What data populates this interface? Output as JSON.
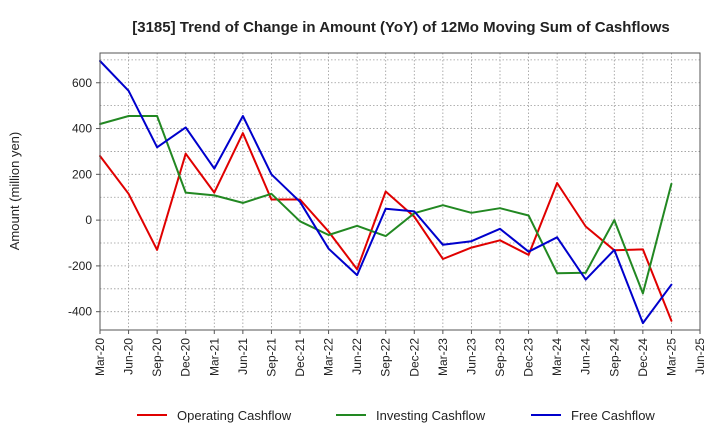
{
  "chart_data": {
    "type": "line",
    "title": "[3185]  Trend of Change in Amount (YoY) of 12Mo Moving Sum of Cashflows",
    "xlabel": "",
    "ylabel": "Amount (million yen)",
    "ylim": [
      -480,
      730
    ],
    "yticks": [
      -400,
      -200,
      0,
      200,
      400,
      600
    ],
    "grid": true,
    "legend_position": "bottom",
    "categories": [
      "Mar-20",
      "Jun-20",
      "Sep-20",
      "Dec-20",
      "Mar-21",
      "Jun-21",
      "Sep-21",
      "Dec-21",
      "Mar-22",
      "Jun-22",
      "Sep-22",
      "Dec-22",
      "Mar-23",
      "Jun-23",
      "Sep-23",
      "Dec-23",
      "Mar-24",
      "Jun-24",
      "Sep-24",
      "Dec-24",
      "Mar-25",
      "Jun-25"
    ],
    "series": [
      {
        "name": "Operating Cashflow",
        "color": "#e00000",
        "values": [
          280,
          115,
          -130,
          290,
          120,
          380,
          90,
          90,
          -50,
          -215,
          125,
          15,
          -170,
          -120,
          -88,
          -152,
          162,
          -28,
          -132,
          -128,
          -440,
          null
        ]
      },
      {
        "name": "Investing Cashflow",
        "color": "#228822",
        "values": [
          420,
          455,
          455,
          120,
          108,
          75,
          115,
          -5,
          -65,
          -25,
          -70,
          30,
          65,
          32,
          52,
          20,
          -232,
          -230,
          0,
          -320,
          158,
          null
        ]
      },
      {
        "name": "Free Cashflow",
        "color": "#0000cc",
        "values": [
          695,
          565,
          318,
          405,
          225,
          455,
          200,
          80,
          -125,
          -240,
          50,
          38,
          -108,
          -92,
          -38,
          -138,
          -75,
          -260,
          -130,
          -450,
          -282,
          null
        ]
      }
    ]
  }
}
